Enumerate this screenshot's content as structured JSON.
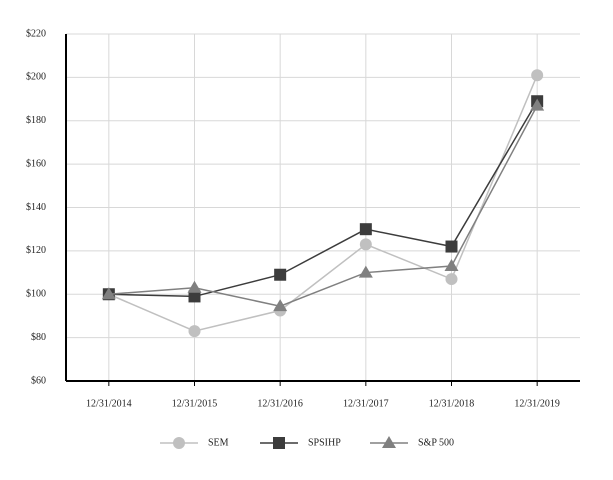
{
  "chart_data": {
    "type": "line",
    "categories": [
      "12/31/2014",
      "12/31/2015",
      "12/31/2016",
      "12/31/2017",
      "12/31/2018",
      "12/31/2019"
    ],
    "series": [
      {
        "name": "SEM",
        "color": "#c0c0c0",
        "marker": "circle",
        "values": [
          100,
          83,
          92.5,
          123,
          107,
          201
        ]
      },
      {
        "name": "SPSIHP",
        "color": "#3c3c3c",
        "marker": "square",
        "values": [
          100,
          99,
          109,
          130,
          122,
          189
        ]
      },
      {
        "name": "S&P 500",
        "color": "#808080",
        "marker": "triangle",
        "values": [
          100,
          103,
          94.5,
          110,
          113,
          187
        ]
      }
    ],
    "ylim": [
      60,
      220
    ],
    "yticks": [
      {
        "value": 60,
        "label": "$60"
      },
      {
        "value": 80,
        "label": "$80"
      },
      {
        "value": 100,
        "label": "$100"
      },
      {
        "value": 120,
        "label": "$120"
      },
      {
        "value": 140,
        "label": "$140"
      },
      {
        "value": 160,
        "label": "$160"
      },
      {
        "value": 180,
        "label": "$180"
      },
      {
        "value": 200,
        "label": "$200"
      },
      {
        "value": 220,
        "label": "$220"
      }
    ],
    "grid": true,
    "legend": "bottom"
  }
}
